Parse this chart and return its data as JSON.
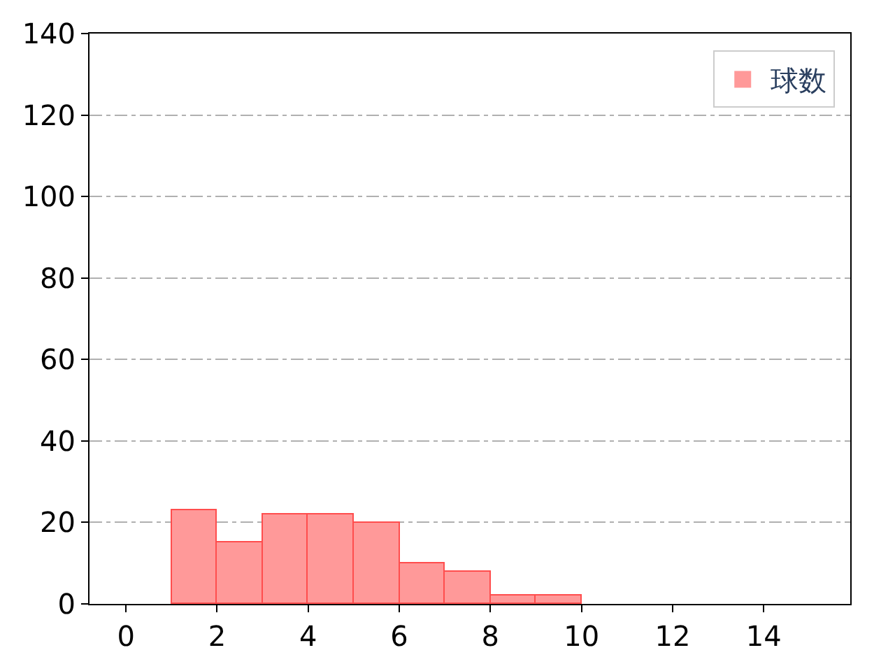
{
  "chart_data": {
    "type": "histogram",
    "bins": [
      0,
      1,
      2,
      3,
      4,
      5,
      6,
      7,
      8,
      9,
      10
    ],
    "series": [
      {
        "name": "球数",
        "color": "#ff9999",
        "values": [
          0,
          23,
          15,
          22,
          22,
          20,
          10,
          8,
          2,
          2
        ]
      }
    ],
    "xlim": [
      -0.8,
      15.9
    ],
    "xticks": [
      0,
      2,
      4,
      6,
      8,
      10,
      12,
      14
    ],
    "ylim": [
      0,
      140
    ],
    "yticks": [
      0,
      20,
      40,
      60,
      80,
      100,
      120,
      140
    ],
    "grid": "y",
    "legend": "top right"
  }
}
